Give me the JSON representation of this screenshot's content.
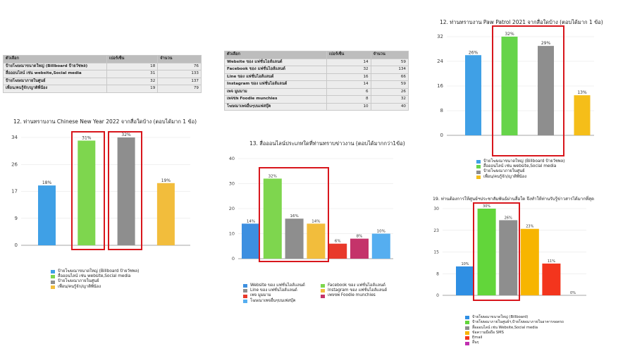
{
  "tables": [
    {
      "headers": [
        "ตัวเลือก",
        "เปอร์เซ็น",
        "จำนวน"
      ],
      "rows": [
        [
          "ป้ายโฆษณาขนาดใหญ่ (Billboard ป้ายวัชพล)",
          "18",
          "76"
        ],
        [
          "สื่อออนไลน์ เช่น website,Social media",
          "31",
          "133"
        ],
        [
          "ป้ายโฆษณาภายในศูนย์",
          "32",
          "137"
        ],
        [
          "เพื่อน/คนรู้จัก/ญาติพี่น้อง",
          "19",
          "79"
        ]
      ]
    },
    {
      "headers": [
        "ตัวเลือก",
        "เปอร์เซ็น",
        "จำนวน"
      ],
      "rows": [
        [
          "Website ของ แฟชั่นไอส์แลนด์",
          "14",
          "59"
        ],
        [
          "Facebook ของ แฟชั่นไอส์แลนด์",
          "32",
          "134"
        ],
        [
          "Line ของ แฟชั่นไอส์แลนด์",
          "16",
          "66"
        ],
        [
          "Instagram ของ แฟชั่นไอส์แลนด์",
          "14",
          "59"
        ],
        [
          "เพจ มูมมาม",
          "6",
          "26"
        ],
        [
          "เพจขพ Foodie munchies",
          "8",
          "32"
        ],
        [
          "โฆษณาเพจอื่นๆบนเฟสบุ๊ค",
          "10",
          "40"
        ]
      ]
    }
  ],
  "chart_data": [
    {
      "type": "bar",
      "title": "12. ท่านทราบงาน Chinese New Year 2022 จากสื่อใดบ้าง (ตอบได้มาก 1 ข้อ)",
      "categories": [
        "ป้ายโฆษณาขนาดใหญ่ (Billboard ป้ายวัชพล)",
        "สื่อออนไลน์ เช่น website,Social media",
        "ป้ายโฆษณาภายในศูนย์",
        "เพื่อน/คนรู้จัก/ญาติพี่น้อง"
      ],
      "values": [
        76,
        133,
        137,
        79
      ],
      "data_labels": [
        "18%",
        "31%",
        "32%",
        "19%"
      ],
      "colors": [
        "#3fa0e6",
        "#7ed64e",
        "#8e8e8e",
        "#f2bd3c"
      ],
      "yticks": [
        "0",
        "9",
        "17",
        "26",
        "34"
      ],
      "ylim": [
        0,
        137
      ],
      "highlight": [
        1,
        2
      ],
      "legend": "bottom"
    },
    {
      "type": "bar",
      "title": "13. สื่อออนไลน์ประเภทใดที่ท่านทราบข่าวงาน (ตอบได้มากกว่า1ข้อ)",
      "categories": [
        "Website ของ แฟชั่นไอส์แลนด์",
        "Facebook ของ แฟชั่นไอส์แลนด์",
        "Line ของ แฟชั่นไอส์แลนด์",
        "Instagram ของ แฟชั่นไอส์แลนด์",
        "เพจ มูมมาม",
        "เพจขพ Foodie munchies",
        "โฆษณาเพจอื่นๆบนเฟสบุ๊ค"
      ],
      "values": [
        14,
        32,
        16,
        14,
        6,
        8,
        10
      ],
      "data_labels": [
        "14%",
        "32%",
        "16%",
        "14%",
        "6%",
        "8%",
        "10%"
      ],
      "colors": [
        "#3d8fe0",
        "#7ed64e",
        "#8e8e8e",
        "#f2bd3c",
        "#e8392a",
        "#c4336a",
        "#55aef0"
      ],
      "yticks": [
        "0",
        "10",
        "20",
        "30",
        "40"
      ],
      "ylim": [
        0,
        40
      ],
      "highlight": [
        1,
        3
      ],
      "legend": "bottom"
    },
    {
      "type": "bar",
      "title": "12. ท่านทราบงาน Paw Patrol 2021 จากสื่อใดบ้าง (ตอบได้มาก 1 ข้อ)",
      "categories": [
        "ป้ายโฆษณาขนาดใหญ่ (Billboard ป้ายวัชพล)",
        "สื่อออนไลน์ เช่น website,Social media",
        "ป้ายโฆษณาภายในศูนย์",
        "เพื่อน/คนรู้จัก/ญาติพี่น้อง"
      ],
      "values": [
        26,
        32,
        29,
        13
      ],
      "data_labels": [
        "26%",
        "32%",
        "29%",
        "13%"
      ],
      "colors": [
        "#3fa0e6",
        "#66d44a",
        "#8e8e8e",
        "#f5be19"
      ],
      "yticks": [
        "0",
        "8",
        "16",
        "24",
        "32"
      ],
      "ylim": [
        0,
        32
      ],
      "highlight": [
        1,
        2
      ],
      "legend": "bottom"
    },
    {
      "type": "bar",
      "title": "19. ท่านต้องการให้ศูนย์ฯประชาสัมพันธ์ผ่านสื่อใด จึงทำให้ท่านรับรู้ข่าวสารได้มากที่สุด",
      "categories": [
        "ป้ายโฆษณาขนาดใหญ่ (Billboard)",
        "ป้ายโฆษณาภายในศูนย์ฯ,ป้ายโฆษณาภายในอาคารจอดรถ",
        "สื่อออนไลน์ เช่น Website,Social media",
        "ข้อความมือถือ SMS",
        "Email",
        "อื่นๆ"
      ],
      "values": [
        10,
        30,
        26,
        23,
        11,
        0
      ],
      "data_labels": [
        "10%",
        "30%",
        "26%",
        "23%",
        "11%",
        "0%"
      ],
      "colors": [
        "#2f8fe3",
        "#62d63a",
        "#8e8e8e",
        "#f7b500",
        "#f3351d",
        "#c02fb0"
      ],
      "yticks": [
        "0",
        "8",
        "15",
        "23",
        "30"
      ],
      "ylim": [
        0,
        30
      ],
      "highlight": [
        1,
        2
      ],
      "legend": "bottom"
    }
  ]
}
